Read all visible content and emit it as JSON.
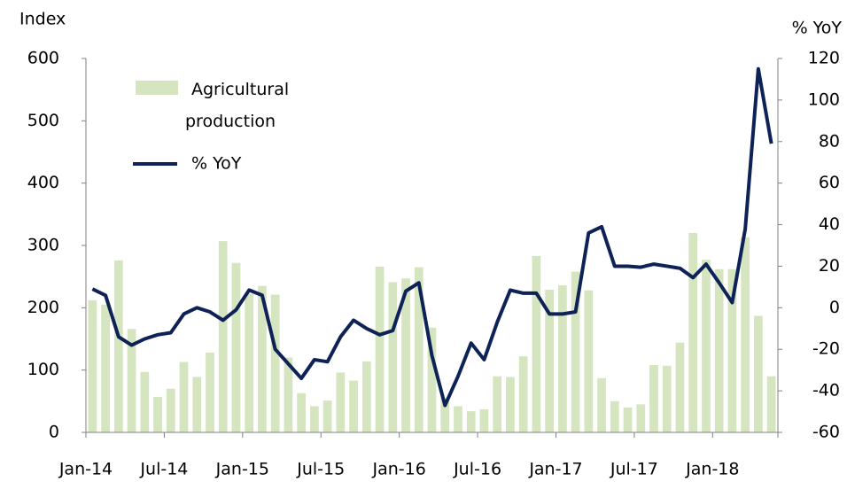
{
  "chart_data": {
    "type": "bar_line",
    "y_label": "Index",
    "y2_label": "% YoY",
    "categories": [
      "Jan-14",
      null,
      null,
      null,
      null,
      null,
      "Jul-14",
      null,
      null,
      null,
      null,
      null,
      "Jan-15",
      null,
      null,
      null,
      null,
      null,
      "Jul-15",
      null,
      null,
      null,
      null,
      null,
      "Jan-16",
      null,
      null,
      null,
      null,
      null,
      "Jul-16",
      null,
      null,
      null,
      null,
      null,
      "Jan-17",
      null,
      null,
      null,
      null,
      null,
      "Jul-17",
      null,
      null,
      null,
      null,
      null,
      "Jan-18",
      null,
      null,
      null,
      null
    ],
    "series": [
      {
        "name": "Agricultural production",
        "color": "#d5e5bf",
        "kind": "bar",
        "values": [
          212,
          205,
          276,
          166,
          97,
          57,
          70,
          113,
          89,
          128,
          307,
          272,
          222,
          235,
          221,
          120,
          63,
          42,
          51,
          96,
          83,
          114,
          266,
          241,
          247,
          265,
          168,
          55,
          42,
          34,
          37,
          90,
          89,
          122,
          283,
          229,
          236,
          258,
          228,
          87,
          50,
          40,
          45,
          108,
          107,
          144,
          320,
          277,
          262,
          262,
          313,
          187,
          90
        ]
      },
      {
        "name": "% YoY",
        "color": "#0e2258",
        "kind": "line",
        "axis": "y2",
        "values": [
          9,
          6,
          -14,
          -18,
          -15,
          -13,
          -12,
          -3,
          0,
          -2,
          -6,
          -1,
          8.5,
          6,
          -20,
          -27,
          -34,
          -25,
          -26,
          -14,
          -6,
          -10,
          -13,
          -11,
          8,
          12,
          -23,
          -47,
          -33,
          -17,
          -25,
          -7,
          8.5,
          7,
          7,
          -3,
          -3,
          -2,
          36,
          39,
          20,
          20,
          19.5,
          21,
          20,
          19,
          14.5,
          21,
          12,
          2.5,
          38,
          115,
          79
        ]
      }
    ],
    "ylim": [
      0,
      600
    ],
    "yticks": [
      0,
      100,
      200,
      300,
      400,
      500,
      600
    ],
    "y2lim": [
      -60,
      120
    ],
    "y2ticks": [
      -60,
      -40,
      -20,
      0,
      20,
      40,
      60,
      80,
      100,
      120
    ],
    "legend": "upper left"
  }
}
